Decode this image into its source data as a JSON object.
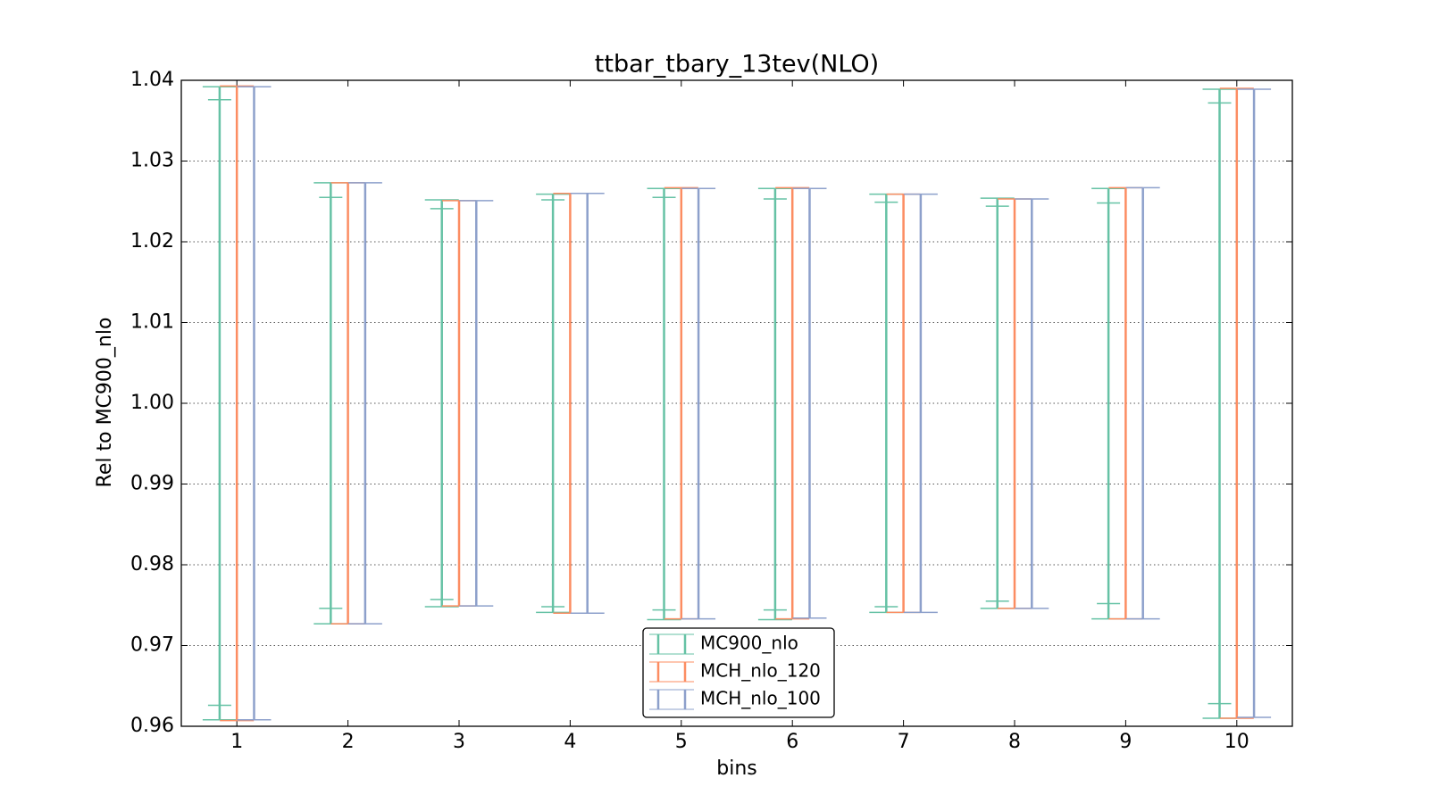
{
  "chart_data": {
    "type": "errorbar",
    "title": "ttbar_tbary_13tev(NLO)",
    "xlabel": "bins",
    "ylabel": "Rel to MC900_nlo",
    "categories": [
      "1",
      "2",
      "3",
      "4",
      "5",
      "6",
      "7",
      "8",
      "9",
      "10"
    ],
    "ylim": [
      0.96,
      1.04
    ],
    "yticks": [
      {
        "value": 0.96,
        "label": "0.96"
      },
      {
        "value": 0.97,
        "label": "0.97"
      },
      {
        "value": 0.98,
        "label": "0.98"
      },
      {
        "value": 0.99,
        "label": "0.99"
      },
      {
        "value": 1.0,
        "label": "1.00"
      },
      {
        "value": 1.01,
        "label": "1.01"
      },
      {
        "value": 1.02,
        "label": "1.02"
      },
      {
        "value": 1.03,
        "label": "1.03"
      },
      {
        "value": 1.04,
        "label": "1.04"
      }
    ],
    "grid": true,
    "legend": "lower center",
    "series": [
      {
        "name": "MC900_nlo",
        "color": "#66c2a5",
        "high": [
          1.0392,
          1.0273,
          1.0252,
          1.0259,
          1.0266,
          1.0266,
          1.0259,
          1.0254,
          1.0266,
          1.0389
        ],
        "low": [
          0.9608,
          0.9727,
          0.9748,
          0.9741,
          0.9732,
          0.9732,
          0.9741,
          0.9746,
          0.9733,
          0.961
        ],
        "inner_high": [
          1.0376,
          1.0255,
          1.0241,
          1.0252,
          1.0255,
          1.0253,
          1.0249,
          1.0244,
          1.0248,
          1.0372
        ],
        "inner_low": [
          0.9626,
          0.9746,
          0.9757,
          0.9748,
          0.9744,
          0.9744,
          0.9748,
          0.9755,
          0.9752,
          0.9628
        ]
      },
      {
        "name": "MCH_nlo_120",
        "color": "#fc8d62",
        "high": [
          1.0393,
          1.0273,
          1.0251,
          1.026,
          1.0267,
          1.0267,
          1.0259,
          1.0253,
          1.0267,
          1.039
        ],
        "low": [
          0.9607,
          0.9727,
          0.9749,
          0.974,
          0.9733,
          0.9733,
          0.9741,
          0.9746,
          0.9733,
          0.961
        ]
      },
      {
        "name": "MCH_nlo_100",
        "color": "#8da0cb",
        "high": [
          1.0392,
          1.0273,
          1.0251,
          1.026,
          1.0266,
          1.0266,
          1.0259,
          1.0253,
          1.0267,
          1.0389
        ],
        "low": [
          0.9608,
          0.9727,
          0.9749,
          0.974,
          0.9733,
          0.9734,
          0.9741,
          0.9746,
          0.9733,
          0.9611
        ]
      }
    ]
  }
}
